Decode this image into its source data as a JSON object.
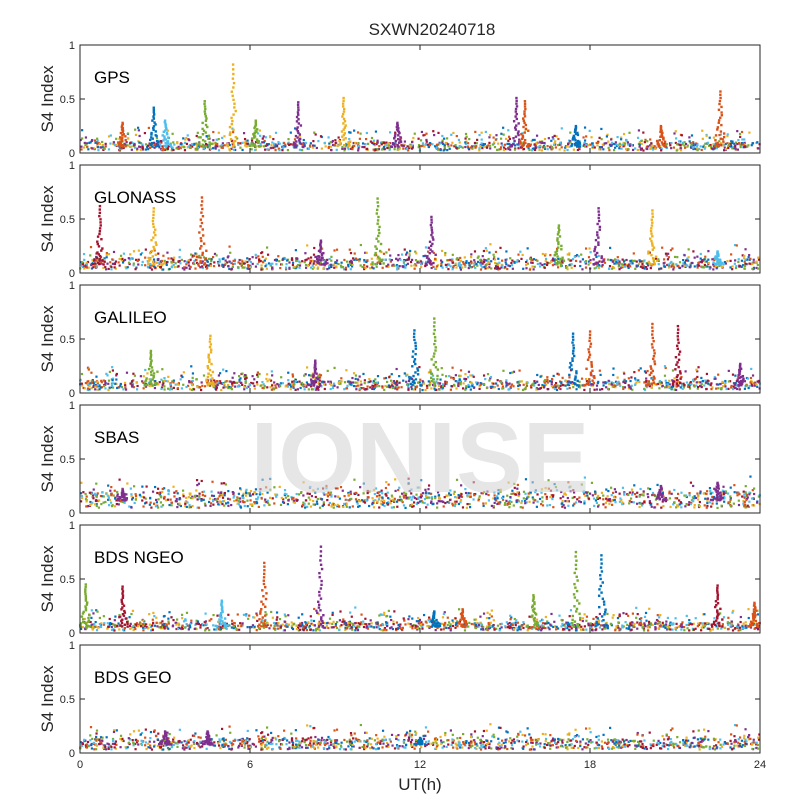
{
  "chart_data": {
    "type": "scatter",
    "title": "SXWN20240718",
    "watermark": "IONISE",
    "xlabel": "UT(h)",
    "ylabel": "S4 Index",
    "xlim": [
      0,
      24
    ],
    "ylim": [
      0,
      1
    ],
    "x_ticks": [
      "0",
      "6",
      "12",
      "18",
      "24"
    ],
    "y_ticks": [
      "0",
      "0.5",
      "1"
    ],
    "grid": false,
    "colors": [
      "#0072BD",
      "#D95319",
      "#EDB120",
      "#7E2F8E",
      "#77AC30",
      "#4DBEEE",
      "#A2142F"
    ],
    "panels": [
      {
        "label": "GPS",
        "baseline": 0.06,
        "spikes": [
          {
            "t": 1.5,
            "peak": 0.28,
            "color": 1
          },
          {
            "t": 2.6,
            "peak": 0.42,
            "color": 0
          },
          {
            "t": 3.0,
            "peak": 0.3,
            "color": 5
          },
          {
            "t": 4.4,
            "peak": 0.48,
            "color": 4
          },
          {
            "t": 5.4,
            "peak": 0.82,
            "color": 2
          },
          {
            "t": 6.2,
            "peak": 0.3,
            "color": 4
          },
          {
            "t": 7.7,
            "peak": 0.47,
            "color": 3
          },
          {
            "t": 9.3,
            "peak": 0.51,
            "color": 2
          },
          {
            "t": 11.2,
            "peak": 0.28,
            "color": 3
          },
          {
            "t": 15.4,
            "peak": 0.51,
            "color": 3
          },
          {
            "t": 15.7,
            "peak": 0.48,
            "color": 1
          },
          {
            "t": 17.5,
            "peak": 0.25,
            "color": 0
          },
          {
            "t": 20.5,
            "peak": 0.25,
            "color": 1
          },
          {
            "t": 22.6,
            "peak": 0.57,
            "color": 1
          }
        ]
      },
      {
        "label": "GLONASS",
        "baseline": 0.08,
        "spikes": [
          {
            "t": 0.7,
            "peak": 0.62,
            "color": 6
          },
          {
            "t": 2.6,
            "peak": 0.6,
            "color": 2
          },
          {
            "t": 4.3,
            "peak": 0.7,
            "color": 1
          },
          {
            "t": 8.5,
            "peak": 0.3,
            "color": 3
          },
          {
            "t": 10.5,
            "peak": 0.69,
            "color": 4
          },
          {
            "t": 12.4,
            "peak": 0.52,
            "color": 3
          },
          {
            "t": 16.9,
            "peak": 0.44,
            "color": 4
          },
          {
            "t": 18.3,
            "peak": 0.6,
            "color": 3
          },
          {
            "t": 20.2,
            "peak": 0.58,
            "color": 2
          },
          {
            "t": 22.5,
            "peak": 0.2,
            "color": 5
          }
        ]
      },
      {
        "label": "GALILEO",
        "baseline": 0.07,
        "spikes": [
          {
            "t": 2.5,
            "peak": 0.39,
            "color": 4
          },
          {
            "t": 4.6,
            "peak": 0.53,
            "color": 2
          },
          {
            "t": 8.3,
            "peak": 0.3,
            "color": 3
          },
          {
            "t": 11.8,
            "peak": 0.58,
            "color": 0
          },
          {
            "t": 12.5,
            "peak": 0.69,
            "color": 4
          },
          {
            "t": 17.4,
            "peak": 0.55,
            "color": 0
          },
          {
            "t": 18.0,
            "peak": 0.57,
            "color": 1
          },
          {
            "t": 20.2,
            "peak": 0.64,
            "color": 1
          },
          {
            "t": 21.1,
            "peak": 0.62,
            "color": 6
          },
          {
            "t": 23.3,
            "peak": 0.27,
            "color": 3
          }
        ]
      },
      {
        "label": "SBAS",
        "baseline": 0.12,
        "spikes": [
          {
            "t": 1.5,
            "peak": 0.22,
            "color": 3
          },
          {
            "t": 20.5,
            "peak": 0.25,
            "color": 3
          },
          {
            "t": 22.5,
            "peak": 0.28,
            "color": 3
          }
        ]
      },
      {
        "label": "BDS NGEO",
        "baseline": 0.06,
        "spikes": [
          {
            "t": 0.2,
            "peak": 0.45,
            "color": 4
          },
          {
            "t": 1.5,
            "peak": 0.43,
            "color": 6
          },
          {
            "t": 5.0,
            "peak": 0.3,
            "color": 5
          },
          {
            "t": 6.5,
            "peak": 0.65,
            "color": 1
          },
          {
            "t": 8.5,
            "peak": 0.8,
            "color": 3
          },
          {
            "t": 12.5,
            "peak": 0.2,
            "color": 0
          },
          {
            "t": 13.5,
            "peak": 0.22,
            "color": 1
          },
          {
            "t": 16.0,
            "peak": 0.35,
            "color": 4
          },
          {
            "t": 17.5,
            "peak": 0.75,
            "color": 4
          },
          {
            "t": 18.4,
            "peak": 0.72,
            "color": 0
          },
          {
            "t": 22.5,
            "peak": 0.44,
            "color": 6
          },
          {
            "t": 23.8,
            "peak": 0.28,
            "color": 1
          }
        ]
      },
      {
        "label": "BDS GEO",
        "baseline": 0.08,
        "spikes": [
          {
            "t": 3.0,
            "peak": 0.2,
            "color": 3
          },
          {
            "t": 4.5,
            "peak": 0.2,
            "color": 3
          },
          {
            "t": 12.0,
            "peak": 0.14,
            "color": 0
          }
        ]
      }
    ]
  }
}
